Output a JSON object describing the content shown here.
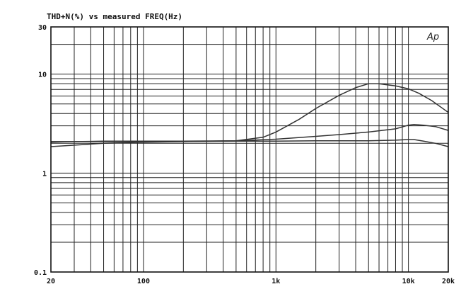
{
  "chart_data": {
    "type": "line",
    "title": "THD+N(%) vs measured FREQ(Hz)",
    "logo": "Ap",
    "x_scale": "log",
    "y_scale": "log",
    "xlim": [
      20,
      20000
    ],
    "ylim": [
      0.1,
      30
    ],
    "grid": true,
    "x_ticks": [
      {
        "value": 20,
        "label": "20"
      },
      {
        "value": 100,
        "label": "100"
      },
      {
        "value": 1000,
        "label": "1k"
      },
      {
        "value": 10000,
        "label": "10k"
      },
      {
        "value": 20000,
        "label": "20k"
      }
    ],
    "y_ticks": [
      {
        "value": 0.1,
        "label": "0.1"
      },
      {
        "value": 1,
        "label": "1"
      },
      {
        "value": 10,
        "label": "10"
      },
      {
        "value": 30,
        "label": "30"
      }
    ],
    "series": [
      {
        "color": "#333333",
        "x": [
          20,
          30,
          50,
          100,
          200,
          500,
          800,
          1000,
          1500,
          2000,
          3000,
          4000,
          5000,
          6000,
          8000,
          10000,
          12000,
          15000,
          20000
        ],
        "y": [
          2.05,
          2.08,
          2.1,
          2.1,
          2.1,
          2.12,
          2.3,
          2.6,
          3.5,
          4.5,
          6.1,
          7.3,
          8.0,
          8.0,
          7.6,
          7.1,
          6.4,
          5.4,
          4.1
        ]
      },
      {
        "color": "#333333",
        "x": [
          20,
          50,
          100,
          200,
          500,
          1000,
          2000,
          3000,
          5000,
          8000,
          10000,
          11000,
          13000,
          16000,
          20000
        ],
        "y": [
          1.85,
          2.0,
          2.05,
          2.08,
          2.12,
          2.2,
          2.35,
          2.45,
          2.6,
          2.8,
          3.05,
          3.1,
          3.05,
          2.95,
          2.7
        ]
      },
      {
        "color": "#333333",
        "x": [
          20,
          50,
          100,
          200,
          500,
          1000,
          2000,
          3000,
          5000,
          8000,
          10000,
          11000,
          13000,
          16000,
          20000
        ],
        "y": [
          2.08,
          2.08,
          2.08,
          2.08,
          2.1,
          2.1,
          2.12,
          2.12,
          2.12,
          2.15,
          2.18,
          2.18,
          2.1,
          2.0,
          1.85
        ]
      }
    ]
  }
}
